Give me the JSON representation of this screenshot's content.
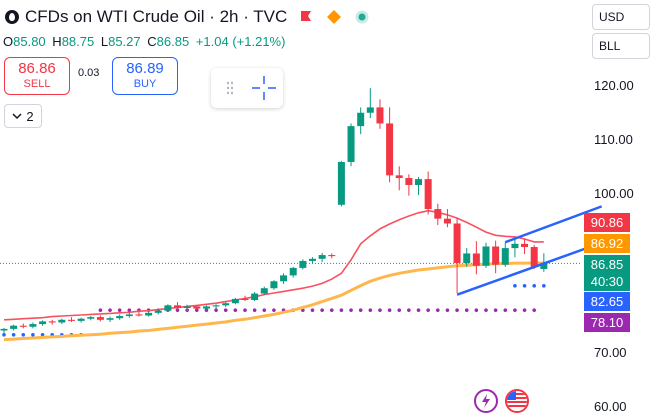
{
  "header": {
    "title": "CFDs on WTI Crude Oil · 2h · TVC",
    "icons": [
      "crude-oil-icon",
      "flag-icon",
      "diamond-icon",
      "live-dot-icon"
    ],
    "colors": {
      "flag": "#f23645",
      "diamond": "#ff9800",
      "live": "#22ab94"
    }
  },
  "ohlc": {
    "o_label": "O",
    "o": "85.80",
    "h_label": "H",
    "h": "88.75",
    "l_label": "L",
    "l": "85.27",
    "c_label": "C",
    "c": "86.85",
    "change": "+1.04 (+1.21%)"
  },
  "trade": {
    "sell_price": "86.86",
    "sell_label": "SELL",
    "spread": "0.03",
    "buy_price": "86.89",
    "buy_label": "BUY"
  },
  "indicators_toggle": {
    "count": "2"
  },
  "selects": {
    "currency": "USD",
    "indicator": "BLL"
  },
  "price_tags": [
    {
      "value": "90.86",
      "color": "#f23645"
    },
    {
      "value": "86.92",
      "color": "#ff9800"
    },
    {
      "value": "86.85",
      "sub": "40:30",
      "color": "#089981"
    },
    {
      "value": "82.65",
      "color": "#2962ff"
    },
    {
      "value": "78.10",
      "color": "#9c27b0"
    }
  ],
  "chart_data": {
    "type": "candlestick",
    "title": "CFDs on WTI Crude Oil",
    "interval": "2h",
    "y_ticks": [
      "120.00",
      "110.00",
      "100.00",
      "70.00",
      "60.00"
    ],
    "ylim": [
      59.0,
      126.0
    ],
    "candles": [
      [
        74.3,
        74.8,
        73.8,
        74.6
      ],
      [
        74.6,
        75.4,
        74.3,
        75.2
      ],
      [
        75.2,
        75.6,
        74.7,
        75.0
      ],
      [
        75.0,
        75.8,
        74.7,
        75.5
      ],
      [
        75.5,
        76.2,
        75.2,
        76.0
      ],
      [
        76.0,
        76.3,
        75.4,
        75.8
      ],
      [
        75.8,
        76.5,
        75.5,
        76.3
      ],
      [
        76.3,
        76.8,
        75.9,
        76.1
      ],
      [
        76.1,
        76.7,
        75.8,
        76.5
      ],
      [
        76.5,
        77.0,
        76.2,
        76.8
      ],
      [
        76.8,
        77.1,
        76.0,
        76.3
      ],
      [
        76.3,
        76.9,
        75.9,
        76.6
      ],
      [
        76.6,
        77.3,
        76.3,
        77.0
      ],
      [
        77.0,
        77.6,
        76.7,
        77.3
      ],
      [
        77.3,
        77.8,
        76.9,
        77.1
      ],
      [
        77.1,
        77.9,
        76.9,
        77.6
      ],
      [
        77.6,
        78.2,
        77.3,
        78.0
      ],
      [
        78.0,
        79.2,
        77.8,
        79.0
      ],
      [
        79.0,
        79.6,
        78.2,
        78.5
      ],
      [
        78.5,
        79.1,
        78.0,
        78.8
      ],
      [
        78.8,
        79.0,
        78.2,
        78.4
      ],
      [
        78.4,
        79.0,
        78.1,
        78.8
      ],
      [
        78.8,
        79.2,
        78.4,
        79.0
      ],
      [
        79.0,
        79.6,
        78.7,
        79.4
      ],
      [
        79.4,
        80.4,
        79.2,
        80.2
      ],
      [
        80.2,
        80.8,
        79.8,
        80.0
      ],
      [
        80.0,
        81.5,
        79.8,
        81.2
      ],
      [
        81.2,
        82.5,
        81.0,
        82.2
      ],
      [
        82.2,
        83.7,
        81.9,
        83.5
      ],
      [
        83.5,
        85.0,
        83.0,
        84.6
      ],
      [
        84.6,
        86.2,
        84.2,
        86.0
      ],
      [
        86.0,
        87.6,
        85.7,
        87.3
      ],
      [
        87.3,
        88.0,
        86.9,
        87.7
      ],
      [
        87.7,
        88.8,
        87.1,
        88.4
      ],
      [
        88.4,
        88.7,
        87.8,
        88.2
      ],
      [
        97.8,
        106.0,
        97.5,
        105.8
      ],
      [
        105.8,
        113.0,
        105.0,
        112.5
      ],
      [
        112.5,
        116.0,
        111.0,
        115.0
      ],
      [
        115.0,
        119.6,
        114.0,
        116.0
      ],
      [
        116.0,
        117.5,
        112.0,
        113.0
      ],
      [
        113.0,
        116.0,
        102.0,
        103.3
      ],
      [
        103.3,
        105.0,
        100.5,
        102.8
      ],
      [
        102.8,
        103.5,
        99.5,
        101.5
      ],
      [
        101.5,
        103.0,
        99.6,
        102.6
      ],
      [
        102.6,
        104.0,
        96.0,
        97.0
      ],
      [
        97.0,
        98.0,
        94.0,
        95.2
      ],
      [
        95.2,
        97.0,
        93.6,
        94.3
      ],
      [
        94.3,
        95.3,
        81.3,
        86.9
      ],
      [
        86.9,
        89.7,
        86.2,
        88.7
      ],
      [
        88.7,
        91.0,
        84.8,
        86.4
      ],
      [
        86.4,
        90.7,
        86.0,
        90.0
      ],
      [
        90.0,
        91.1,
        85.0,
        86.6
      ],
      [
        86.6,
        90.8,
        86.2,
        89.7
      ],
      [
        89.7,
        91.3,
        88.0,
        90.5
      ],
      [
        90.5,
        91.5,
        88.6,
        89.9
      ],
      [
        89.9,
        90.3,
        85.8,
        86.2
      ],
      [
        85.8,
        88.75,
        85.27,
        86.85
      ]
    ],
    "ma_red": [
      76.3,
      76.4,
      76.5,
      76.6,
      76.7,
      76.9,
      77.0,
      77.1,
      77.2,
      77.3,
      77.4,
      77.5,
      77.6,
      77.7,
      77.9,
      78.0,
      78.2,
      78.4,
      78.6,
      78.8,
      79.0,
      79.2,
      79.4,
      79.7,
      80.0,
      80.3,
      80.6,
      81.0,
      81.3,
      81.6,
      81.9,
      82.2,
      82.6,
      83.1,
      83.9,
      85.0,
      87.5,
      90.5,
      92.0,
      93.3,
      94.2,
      95.0,
      95.7,
      96.3,
      96.7,
      96.4,
      95.9,
      95.3,
      94.5,
      93.6,
      92.7,
      92.1,
      91.9,
      91.8,
      91.4,
      90.86,
      90.86
    ],
    "ma_orange": [
      72.6,
      72.7,
      72.8,
      72.9,
      73.0,
      73.1,
      73.2,
      73.3,
      73.4,
      73.5,
      73.6,
      73.8,
      73.9,
      74.0,
      74.2,
      74.3,
      74.5,
      74.7,
      74.9,
      75.1,
      75.3,
      75.5,
      75.7,
      75.9,
      76.2,
      76.4,
      76.7,
      77.0,
      77.3,
      77.7,
      78.1,
      78.6,
      79.1,
      79.7,
      80.3,
      80.9,
      81.8,
      82.7,
      83.5,
      84.1,
      84.6,
      85.0,
      85.3,
      85.6,
      85.8,
      86.0,
      86.2,
      86.4,
      86.5,
      86.6,
      86.7,
      86.8,
      86.8,
      86.9,
      86.9,
      86.92,
      86.92
    ],
    "dots_blue": {
      "value": 73.5,
      "from": 0,
      "to": 8
    },
    "dots_blue_recent": {
      "value": 82.65,
      "from": 53,
      "to": 56
    },
    "dots_purple": {
      "value": 78.1,
      "from": 10,
      "to": 55
    },
    "channel_upper": {
      "x": [
        52,
        62
      ],
      "y": [
        90.8,
        97.5
      ]
    },
    "channel_lower": {
      "x": [
        47,
        62
      ],
      "y": [
        81.0,
        90.7
      ]
    },
    "last_close": 86.85
  }
}
